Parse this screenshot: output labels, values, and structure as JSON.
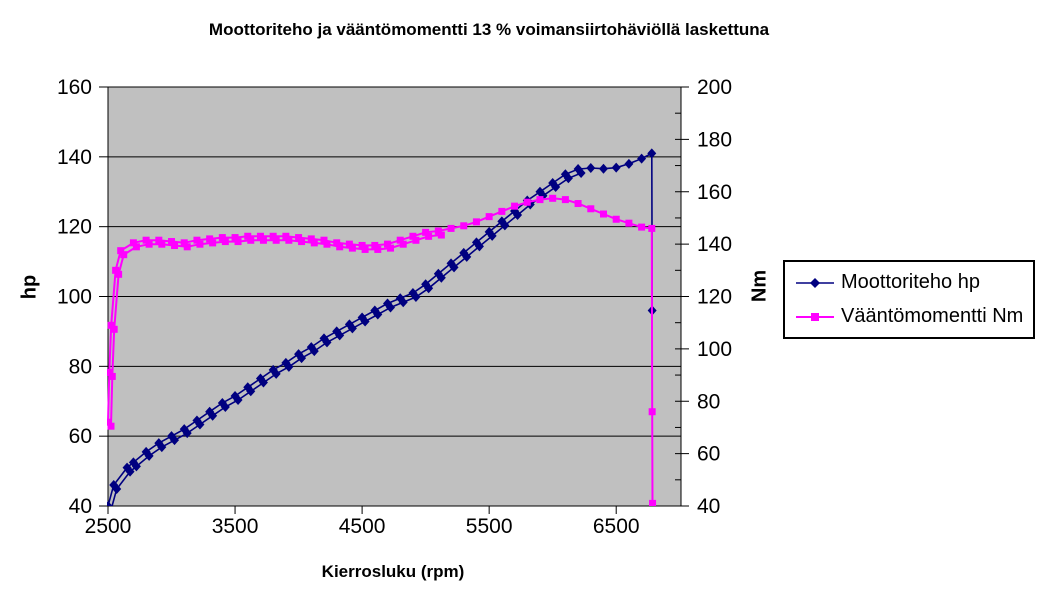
{
  "chart_data": {
    "type": "line",
    "title": "Moottoriteho ja vääntömomentti 13 % voimansiirtohäviöllä laskettuna",
    "xlabel": "Kierrosluku (rpm)",
    "ylabel_left": "hp",
    "ylabel_right": "Nm",
    "xlim": [
      2500,
      7010
    ],
    "ylim_left": [
      40,
      160
    ],
    "ylim_right": [
      40,
      200
    ],
    "x_ticks": [
      2500,
      3500,
      4500,
      5500,
      6500
    ],
    "y_ticks_left": [
      40,
      60,
      80,
      100,
      120,
      140,
      160
    ],
    "y_ticks_right": [
      40,
      60,
      80,
      100,
      120,
      140,
      160,
      180,
      200
    ],
    "y_minor_tick_step_right": 10,
    "grid": "horizontal-black",
    "plot_bg": "#c0c0c0",
    "legend_position": "right",
    "series": [
      {
        "name": "Moottoriteho hp",
        "axis": "left",
        "color": "#000080",
        "marker": "diamond",
        "line_width": 1.6,
        "second_pass": {
          "range": [
            2500,
            6200
          ],
          "dx": 3,
          "dy": 4
        },
        "points": [
          [
            2500,
            40
          ],
          [
            2545,
            46
          ],
          [
            2650,
            51
          ],
          [
            2700,
            52.5
          ],
          [
            2800,
            55.5
          ],
          [
            2900,
            58
          ],
          [
            3000,
            60
          ],
          [
            3100,
            62
          ],
          [
            3200,
            64.5
          ],
          [
            3300,
            67
          ],
          [
            3400,
            69.5
          ],
          [
            3500,
            71.5
          ],
          [
            3600,
            74
          ],
          [
            3700,
            76.5
          ],
          [
            3800,
            79
          ],
          [
            3900,
            81
          ],
          [
            4000,
            83.5
          ],
          [
            4100,
            85.5
          ],
          [
            4200,
            88
          ],
          [
            4300,
            90
          ],
          [
            4400,
            92
          ],
          [
            4500,
            94
          ],
          [
            4600,
            96
          ],
          [
            4700,
            98
          ],
          [
            4800,
            99.5
          ],
          [
            4900,
            101
          ],
          [
            5000,
            103.5
          ],
          [
            5100,
            106.5
          ],
          [
            5200,
            109.5
          ],
          [
            5300,
            112.5
          ],
          [
            5400,
            115.5
          ],
          [
            5500,
            118.5
          ],
          [
            5600,
            121.5
          ],
          [
            5700,
            124.5
          ],
          [
            5800,
            127.5
          ],
          [
            5900,
            130
          ],
          [
            6000,
            132.5
          ],
          [
            6100,
            135
          ],
          [
            6200,
            136.5
          ],
          [
            6300,
            136.8
          ],
          [
            6400,
            136.6
          ],
          [
            6500,
            136.9
          ],
          [
            6600,
            138
          ],
          [
            6700,
            139.5
          ],
          [
            6780,
            141
          ],
          [
            6783,
            96
          ]
        ]
      },
      {
        "name": "Vääntömomentti Nm",
        "axis": "right",
        "color": "#ff00ff",
        "marker": "square",
        "line_width": 2,
        "second_pass": {
          "range": [
            2500,
            5100
          ],
          "dx": 3,
          "dy": 4
        },
        "points": [
          [
            2500,
            72
          ],
          [
            2510,
            91
          ],
          [
            2525,
            109
          ],
          [
            2560,
            130
          ],
          [
            2600,
            137.5
          ],
          [
            2700,
            140.5
          ],
          [
            2800,
            141.5
          ],
          [
            2900,
            141.5
          ],
          [
            3000,
            141
          ],
          [
            3100,
            140.5
          ],
          [
            3200,
            141.5
          ],
          [
            3300,
            142
          ],
          [
            3400,
            142.5
          ],
          [
            3500,
            142.5
          ],
          [
            3600,
            143
          ],
          [
            3700,
            143
          ],
          [
            3800,
            143
          ],
          [
            3900,
            143
          ],
          [
            4000,
            142.5
          ],
          [
            4100,
            142
          ],
          [
            4200,
            141.5
          ],
          [
            4300,
            140.5
          ],
          [
            4400,
            140
          ],
          [
            4500,
            139.5
          ],
          [
            4600,
            139.5
          ],
          [
            4700,
            140
          ],
          [
            4800,
            141.5
          ],
          [
            4900,
            143
          ],
          [
            5000,
            144.5
          ],
          [
            5100,
            145
          ],
          [
            5200,
            146
          ],
          [
            5300,
            147
          ],
          [
            5400,
            148.5
          ],
          [
            5500,
            150.5
          ],
          [
            5600,
            152.5
          ],
          [
            5700,
            154.5
          ],
          [
            5800,
            156
          ],
          [
            5900,
            157
          ],
          [
            6000,
            157.5
          ],
          [
            6100,
            157
          ],
          [
            6200,
            155.5
          ],
          [
            6300,
            153.5
          ],
          [
            6400,
            151.5
          ],
          [
            6500,
            149.5
          ],
          [
            6600,
            148
          ],
          [
            6700,
            146.5
          ],
          [
            6780,
            146
          ],
          [
            6783,
            76
          ],
          [
            6786,
            41
          ]
        ]
      }
    ]
  },
  "legend": {
    "items": [
      {
        "label": "Moottoriteho hp"
      },
      {
        "label": "Vääntömomentti Nm"
      }
    ]
  },
  "colors": {
    "power_series": "#000080",
    "torque_series": "#ff00ff",
    "plot_background": "#c0c0c0",
    "grid_line": "#000000",
    "text": "#000000"
  }
}
